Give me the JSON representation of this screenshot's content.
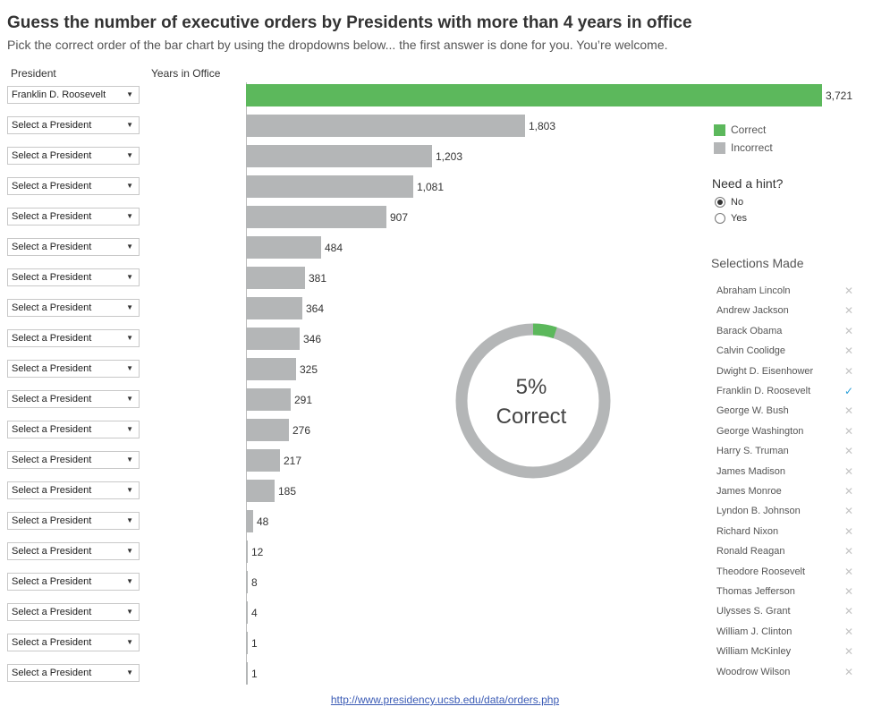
{
  "title": "Guess the number of executive orders by Presidents with more than 4 years in office",
  "subtitle": "Pick the correct order of the bar chart by using the dropdowns below... the first answer is done for you. You’re welcome.",
  "headers": {
    "president": "President",
    "years": "Years in Office"
  },
  "dropdowns": [
    "Franklin D. Roosevelt",
    "Select a President",
    "Select a President",
    "Select a President",
    "Select a President",
    "Select a President",
    "Select a President",
    "Select a President",
    "Select a President",
    "Select a President",
    "Select a President",
    "Select a President",
    "Select a President",
    "Select a President",
    "Select a President",
    "Select a President",
    "Select a President",
    "Select a President",
    "Select a President",
    "Select a President"
  ],
  "chart_data": {
    "type": "bar",
    "orientation": "horizontal",
    "values": [
      3721,
      1803,
      1203,
      1081,
      907,
      484,
      381,
      364,
      346,
      325,
      291,
      276,
      217,
      185,
      48,
      12,
      8,
      4,
      1,
      1
    ],
    "labels": [
      "3,721",
      "1,803",
      "1,203",
      "1,081",
      "907",
      "484",
      "381",
      "364",
      "346",
      "325",
      "291",
      "276",
      "217",
      "185",
      "48",
      "12",
      "8",
      "4",
      "1",
      "1"
    ],
    "status": [
      "correct",
      "incorrect",
      "incorrect",
      "incorrect",
      "incorrect",
      "incorrect",
      "incorrect",
      "incorrect",
      "incorrect",
      "incorrect",
      "incorrect",
      "incorrect",
      "incorrect",
      "incorrect",
      "incorrect",
      "incorrect",
      "incorrect",
      "incorrect",
      "incorrect",
      "incorrect"
    ],
    "xlim": [
      0,
      3721
    ],
    "legend": [
      {
        "label": "Correct",
        "color": "#5cb85c"
      },
      {
        "label": "Incorrect",
        "color": "#b4b6b7"
      }
    ],
    "donut": {
      "percent": 5,
      "percent_label": "5%",
      "label": "Correct",
      "fill_color": "#5cb85c",
      "rest_color": "#b4b6b7"
    }
  },
  "hint": {
    "title": "Need a hint?",
    "options": [
      "No",
      "Yes"
    ],
    "selected": "No"
  },
  "selections": {
    "title": "Selections Made",
    "items": [
      {
        "name": "Abraham Lincoln",
        "mark": "✕"
      },
      {
        "name": "Andrew Jackson",
        "mark": "✕"
      },
      {
        "name": "Barack Obama",
        "mark": "✕"
      },
      {
        "name": "Calvin Coolidge",
        "mark": "✕"
      },
      {
        "name": "Dwight D. Eisenhower",
        "mark": "✕"
      },
      {
        "name": "Franklin D. Roosevelt",
        "mark": "✓"
      },
      {
        "name": "George W. Bush",
        "mark": "✕"
      },
      {
        "name": "George Washington",
        "mark": "✕"
      },
      {
        "name": "Harry S. Truman",
        "mark": "✕"
      },
      {
        "name": "James Madison",
        "mark": "✕"
      },
      {
        "name": "James Monroe",
        "mark": "✕"
      },
      {
        "name": "Lyndon B. Johnson",
        "mark": "✕"
      },
      {
        "name": "Richard Nixon",
        "mark": "✕"
      },
      {
        "name": "Ronald Reagan",
        "mark": "✕"
      },
      {
        "name": "Theodore Roosevelt",
        "mark": "✕"
      },
      {
        "name": "Thomas Jefferson",
        "mark": "✕"
      },
      {
        "name": "Ulysses S. Grant",
        "mark": "✕"
      },
      {
        "name": "William J. Clinton",
        "mark": "✕"
      },
      {
        "name": "William McKinley",
        "mark": "✕"
      },
      {
        "name": "Woodrow Wilson",
        "mark": "✕"
      }
    ]
  },
  "source": {
    "text": "http://www.presidency.ucsb.edu/data/orders.php"
  },
  "icons": {
    "dropdown_caret": "▼"
  }
}
